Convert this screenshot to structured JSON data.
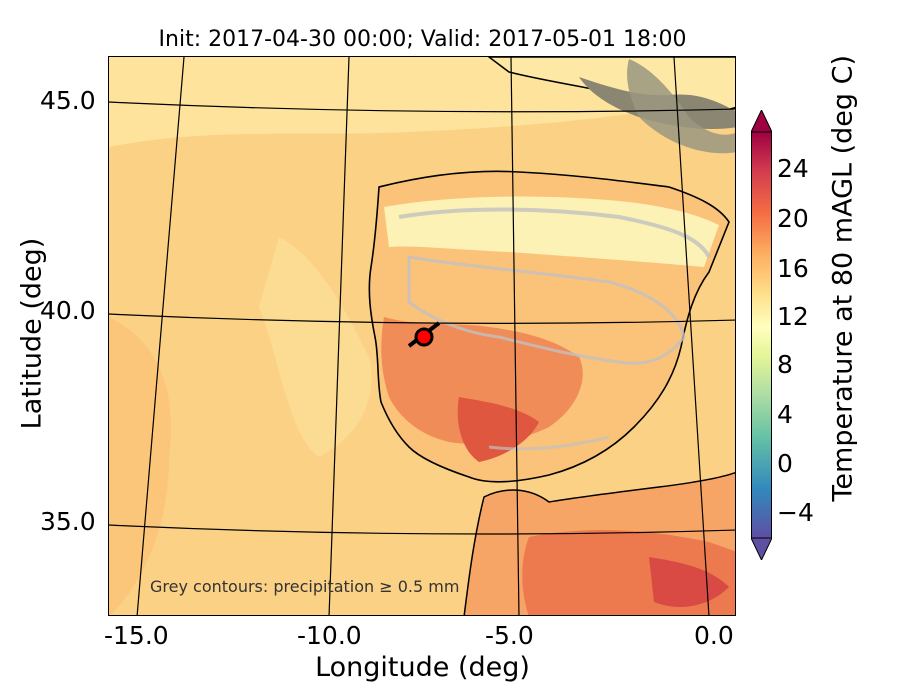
{
  "title": "Init: 2017-04-30 00:00; Valid: 2017-05-01 18:00",
  "axes": {
    "xlabel": "Longitude (deg)",
    "ylabel": "Latitude (deg)",
    "xticks": [
      "-15.0",
      "-10.0",
      "-5.0",
      "0.0"
    ],
    "yticks": [
      "45.0",
      "40.0",
      "35.0"
    ]
  },
  "colorbar": {
    "label": "Temperature at 80 mAGL (deg C)",
    "ticks": [
      "24",
      "20",
      "16",
      "12",
      "8",
      "4",
      "0",
      "−4"
    ],
    "range": [
      -8,
      28
    ],
    "colormap": [
      "#5e4fa2",
      "#3288bd",
      "#66c2a5",
      "#abdda4",
      "#e6f598",
      "#ffffbf",
      "#fee08b",
      "#fdae61",
      "#f46d43",
      "#d53e4f",
      "#9e0142"
    ]
  },
  "annotation": "Grey contours: precipitation ≥ 0.5 mm",
  "marker": {
    "lon": -7.6,
    "lat": 39.4,
    "color": "#ff0000"
  },
  "colors": {
    "sea": "#fbd185",
    "land_warm": "#f08c58",
    "land_cool": "#fdf2b5",
    "coast": "#000000",
    "precip_contour": "#c0c0c0"
  }
}
